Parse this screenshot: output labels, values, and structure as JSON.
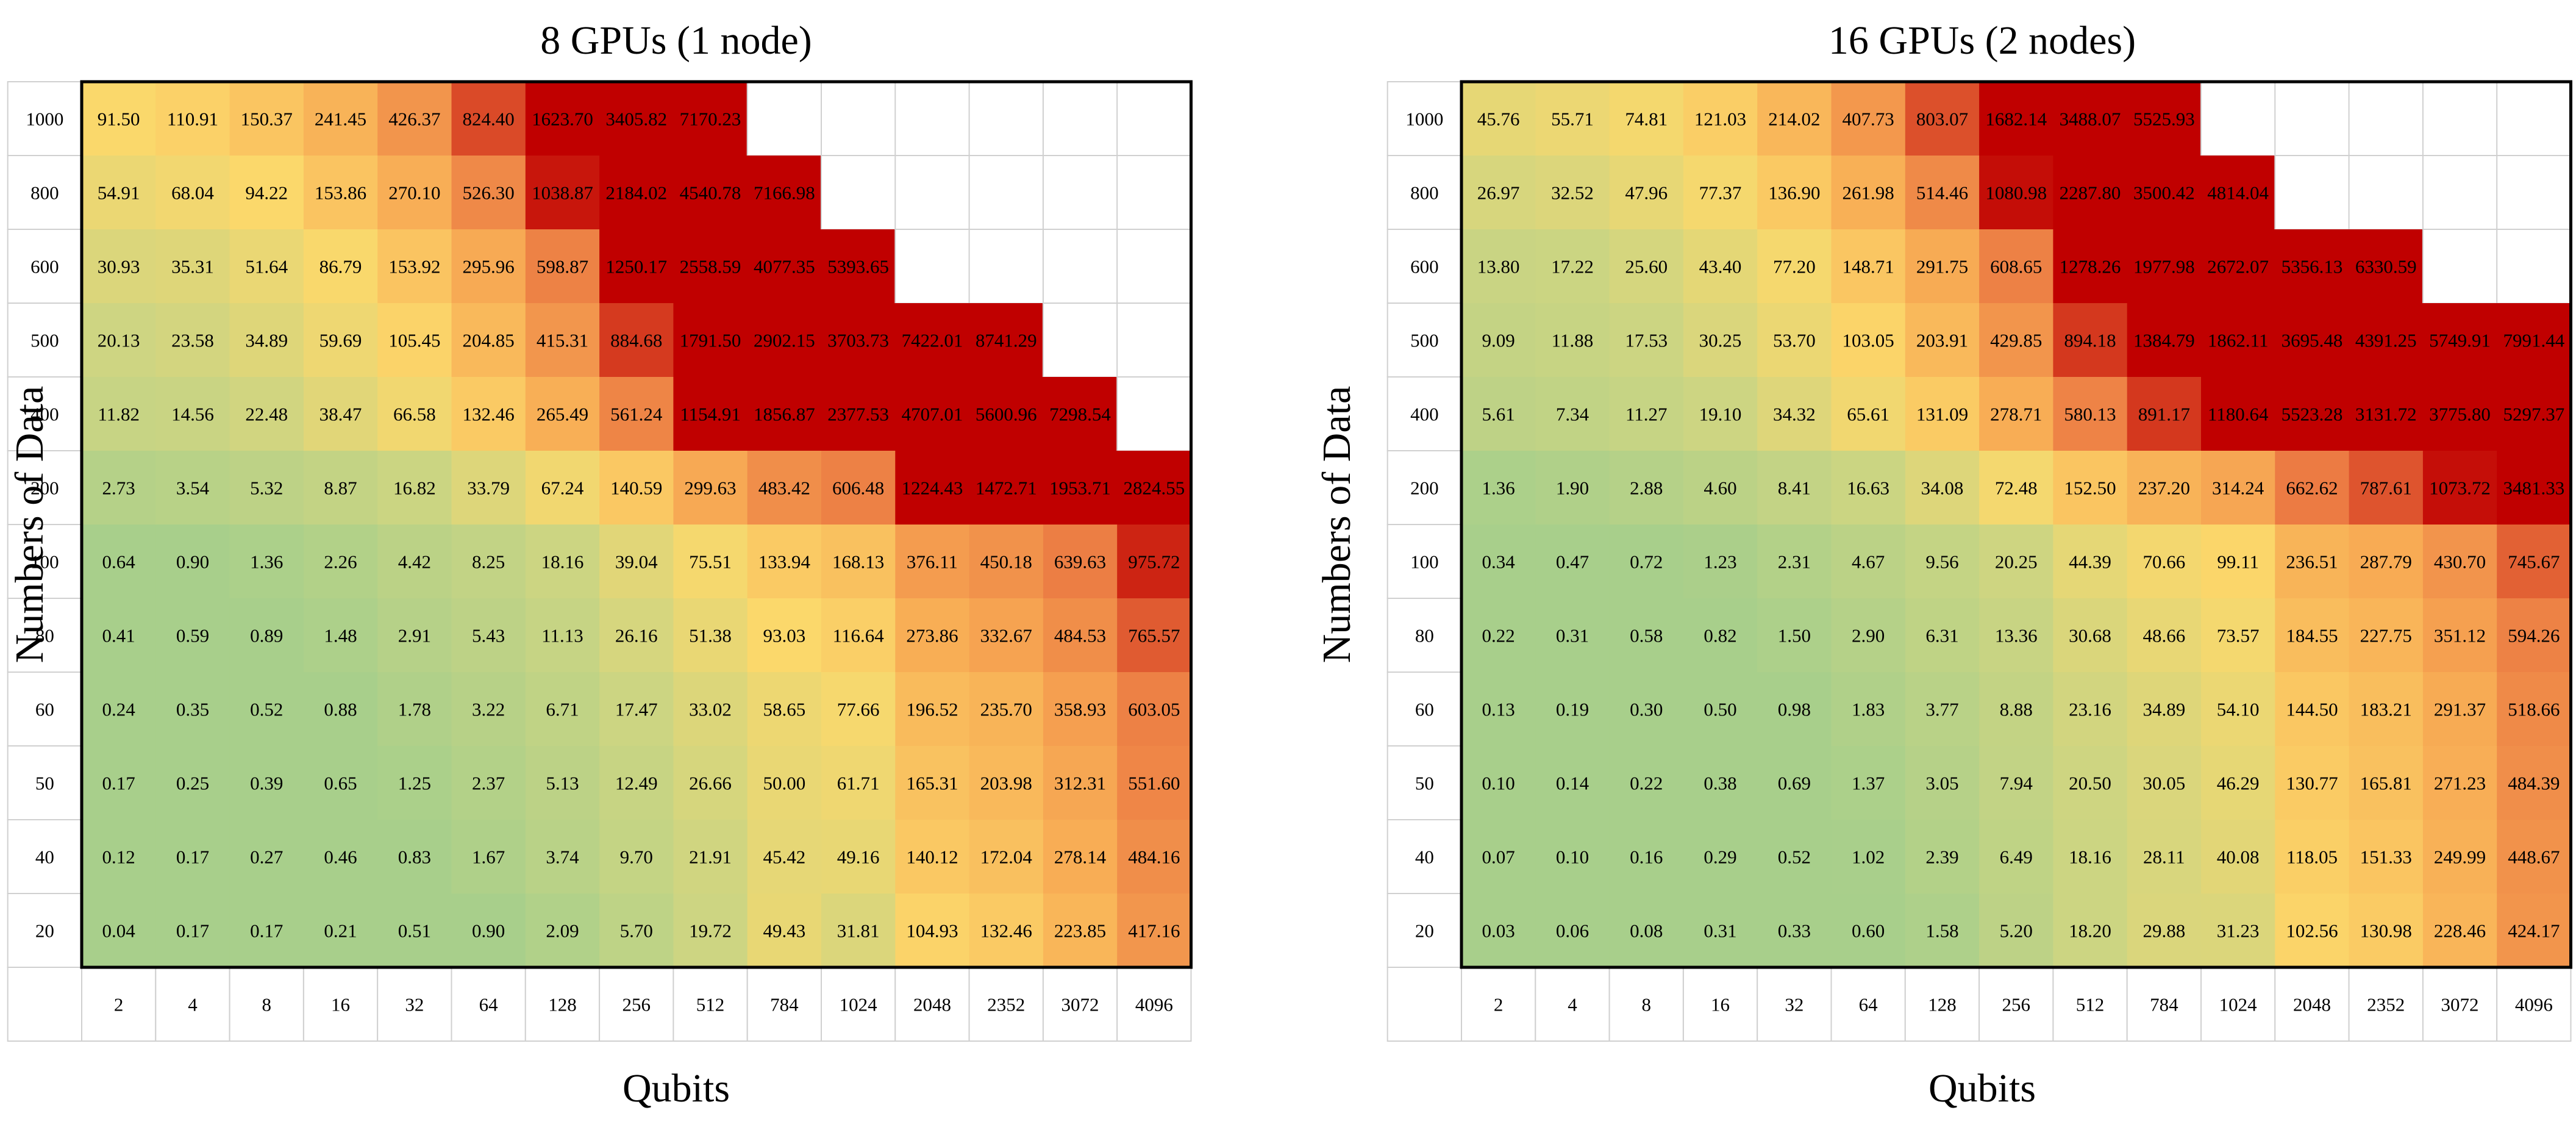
{
  "chart_data": [
    {
      "type": "heatmap",
      "title": "8 GPUs (1 node)",
      "xlabel": "Qubits",
      "ylabel": "Numbers of Data",
      "x": [
        "2",
        "4",
        "8",
        "16",
        "32",
        "64",
        "128",
        "256",
        "512",
        "784",
        "1024",
        "2048",
        "2352",
        "3072",
        "4096"
      ],
      "y": [
        "1000",
        "800",
        "600",
        "500",
        "400",
        "200",
        "100",
        "80",
        "60",
        "50",
        "40",
        "20"
      ],
      "values": [
        [
          "91.50",
          "110.91",
          "150.37",
          "241.45",
          "426.37",
          "824.40",
          "1623.70",
          "3405.82",
          "7170.23",
          "",
          "",
          "",
          "",
          "",
          ""
        ],
        [
          "54.91",
          "68.04",
          "94.22",
          "153.86",
          "270.10",
          "526.30",
          "1038.87",
          "2184.02",
          "4540.78",
          "7166.98",
          "",
          "",
          "",
          "",
          ""
        ],
        [
          "30.93",
          "35.31",
          "51.64",
          "86.79",
          "153.92",
          "295.96",
          "598.87",
          "1250.17",
          "2558.59",
          "4077.35",
          "5393.65",
          "",
          "",
          "",
          ""
        ],
        [
          "20.13",
          "23.58",
          "34.89",
          "59.69",
          "105.45",
          "204.85",
          "415.31",
          "884.68",
          "1791.50",
          "2902.15",
          "3703.73",
          "7422.01",
          "8741.29",
          "",
          ""
        ],
        [
          "11.82",
          "14.56",
          "22.48",
          "38.47",
          "66.58",
          "132.46",
          "265.49",
          "561.24",
          "1154.91",
          "1856.87",
          "2377.53",
          "4707.01",
          "5600.96",
          "7298.54",
          ""
        ],
        [
          "2.73",
          "3.54",
          "5.32",
          "8.87",
          "16.82",
          "33.79",
          "67.24",
          "140.59",
          "299.63",
          "483.42",
          "606.48",
          "1224.43",
          "1472.71",
          "1953.71",
          "2824.55"
        ],
        [
          "0.64",
          "0.90",
          "1.36",
          "2.26",
          "4.42",
          "8.25",
          "18.16",
          "39.04",
          "75.51",
          "133.94",
          "168.13",
          "376.11",
          "450.18",
          "639.63",
          "975.72"
        ],
        [
          "0.41",
          "0.59",
          "0.89",
          "1.48",
          "2.91",
          "5.43",
          "11.13",
          "26.16",
          "51.38",
          "93.03",
          "116.64",
          "273.86",
          "332.67",
          "484.53",
          "765.57"
        ],
        [
          "0.24",
          "0.35",
          "0.52",
          "0.88",
          "1.78",
          "3.22",
          "6.71",
          "17.47",
          "33.02",
          "58.65",
          "77.66",
          "196.52",
          "235.70",
          "358.93",
          "603.05"
        ],
        [
          "0.17",
          "0.25",
          "0.39",
          "0.65",
          "1.25",
          "2.37",
          "5.13",
          "12.49",
          "26.66",
          "50.00",
          "61.71",
          "165.31",
          "203.98",
          "312.31",
          "551.60"
        ],
        [
          "0.12",
          "0.17",
          "0.27",
          "0.46",
          "0.83",
          "1.67",
          "3.74",
          "9.70",
          "21.91",
          "45.42",
          "49.16",
          "140.12",
          "172.04",
          "278.14",
          "484.16"
        ],
        [
          "0.04",
          "0.17",
          "0.17",
          "0.21",
          "0.51",
          "0.90",
          "2.09",
          "5.70",
          "19.72",
          "49.43",
          "31.81",
          "104.93",
          "132.46",
          "223.85",
          "417.16"
        ]
      ]
    },
    {
      "type": "heatmap",
      "title": "16 GPUs (2 nodes)",
      "xlabel": "Qubits",
      "ylabel": "Numbers of Data",
      "x": [
        "2",
        "4",
        "8",
        "16",
        "32",
        "64",
        "128",
        "256",
        "512",
        "784",
        "1024",
        "2048",
        "2352",
        "3072",
        "4096"
      ],
      "y": [
        "1000",
        "800",
        "600",
        "500",
        "400",
        "200",
        "100",
        "80",
        "60",
        "50",
        "40",
        "20"
      ],
      "values": [
        [
          "45.76",
          "55.71",
          "74.81",
          "121.03",
          "214.02",
          "407.73",
          "803.07",
          "1682.14",
          "3488.07",
          "5525.93",
          "",
          "",
          "",
          "",
          ""
        ],
        [
          "26.97",
          "32.52",
          "47.96",
          "77.37",
          "136.90",
          "261.98",
          "514.46",
          "1080.98",
          "2287.80",
          "3500.42",
          "4814.04",
          "",
          "",
          "",
          ""
        ],
        [
          "13.80",
          "17.22",
          "25.60",
          "43.40",
          "77.20",
          "148.71",
          "291.75",
          "608.65",
          "1278.26",
          "1977.98",
          "2672.07",
          "5356.13",
          "6330.59",
          "",
          ""
        ],
        [
          "9.09",
          "11.88",
          "17.53",
          "30.25",
          "53.70",
          "103.05",
          "203.91",
          "429.85",
          "894.18",
          "1384.79",
          "1862.11",
          "3695.48",
          "4391.25",
          "5749.91",
          "7991.44"
        ],
        [
          "5.61",
          "7.34",
          "11.27",
          "19.10",
          "34.32",
          "65.61",
          "131.09",
          "278.71",
          "580.13",
          "891.17",
          "1180.64",
          "5523.28",
          "3131.72",
          "3775.80",
          "5297.37"
        ],
        [
          "1.36",
          "1.90",
          "2.88",
          "4.60",
          "8.41",
          "16.63",
          "34.08",
          "72.48",
          "152.50",
          "237.20",
          "314.24",
          "662.62",
          "787.61",
          "1073.72",
          "3481.33"
        ],
        [
          "0.34",
          "0.47",
          "0.72",
          "1.23",
          "2.31",
          "4.67",
          "9.56",
          "20.25",
          "44.39",
          "70.66",
          "99.11",
          "236.51",
          "287.79",
          "430.70",
          "745.67"
        ],
        [
          "0.22",
          "0.31",
          "0.58",
          "0.82",
          "1.50",
          "2.90",
          "6.31",
          "13.36",
          "30.68",
          "48.66",
          "73.57",
          "184.55",
          "227.75",
          "351.12",
          "594.26"
        ],
        [
          "0.13",
          "0.19",
          "0.30",
          "0.50",
          "0.98",
          "1.83",
          "3.77",
          "8.88",
          "23.16",
          "34.89",
          "54.10",
          "144.50",
          "183.21",
          "291.37",
          "518.66"
        ],
        [
          "0.10",
          "0.14",
          "0.22",
          "0.38",
          "0.69",
          "1.37",
          "3.05",
          "7.94",
          "20.50",
          "30.05",
          "46.29",
          "130.77",
          "165.81",
          "271.23",
          "484.39"
        ],
        [
          "0.07",
          "0.10",
          "0.16",
          "0.29",
          "0.52",
          "1.02",
          "2.39",
          "6.49",
          "18.16",
          "28.11",
          "40.08",
          "118.05",
          "151.33",
          "249.99",
          "448.67"
        ],
        [
          "0.03",
          "0.06",
          "0.08",
          "0.31",
          "0.33",
          "0.60",
          "1.58",
          "5.20",
          "18.20",
          "29.88",
          "31.23",
          "102.56",
          "130.98",
          "228.46",
          "424.17"
        ]
      ]
    }
  ],
  "colors": {
    "scale": [
      "#a8cf8b",
      "#cdd582",
      "#fbd86b",
      "#f8ad55",
      "#ec7c43",
      "#c00000"
    ],
    "grid_line": "#d0d0d0",
    "border": "#000000",
    "text": "#000000"
  }
}
